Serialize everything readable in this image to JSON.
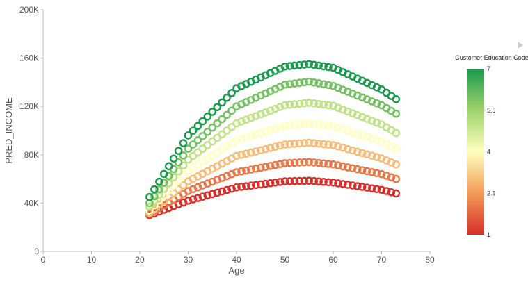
{
  "chart_data": {
    "type": "scatter",
    "xlabel": "Age",
    "ylabel": "PRED_INCOME",
    "xlim": [
      0,
      80
    ],
    "ylim": [
      0,
      200000
    ],
    "x_ticks": [
      0,
      10,
      20,
      30,
      40,
      50,
      60,
      70,
      80
    ],
    "x_tick_labels": [
      "0",
      "10",
      "20",
      "30",
      "40",
      "50",
      "60",
      "70",
      "80"
    ],
    "y_ticks": [
      0,
      40000,
      80000,
      120000,
      160000,
      200000
    ],
    "y_tick_labels": [
      "0",
      "40K",
      "80K",
      "120K",
      "160K",
      "200K"
    ],
    "grid": false,
    "marker": "open-circle",
    "legend": {
      "title": "Customer Education Code",
      "placement": "right",
      "type": "color-gradient",
      "min": 1,
      "max": 7,
      "ticks": [
        1,
        2.5,
        4,
        5.5,
        7
      ],
      "tick_labels": [
        "1",
        "2.5",
        "4",
        "5.5",
        "7"
      ],
      "stops": [
        {
          "value": 1,
          "color": "#d7302a"
        },
        {
          "value": 2.5,
          "color": "#f29a55"
        },
        {
          "value": 4,
          "color": "#ffffbf"
        },
        {
          "value": 5.5,
          "color": "#9fd46a"
        },
        {
          "value": 7,
          "color": "#1a9a4d"
        }
      ]
    },
    "series": [
      {
        "education_code": 1,
        "x_start": 22,
        "x_end": 73,
        "x_step": 1,
        "anchors": [
          [
            22,
            30000
          ],
          [
            30,
            42000
          ],
          [
            40,
            53000
          ],
          [
            50,
            58000
          ],
          [
            55,
            58500
          ],
          [
            60,
            57000
          ],
          [
            70,
            51000
          ],
          [
            73,
            48000
          ]
        ]
      },
      {
        "education_code": 2,
        "x_start": 22,
        "x_end": 73,
        "x_step": 1,
        "anchors": [
          [
            22,
            31000
          ],
          [
            30,
            50000
          ],
          [
            40,
            65500
          ],
          [
            50,
            73000
          ],
          [
            55,
            74000
          ],
          [
            60,
            72000
          ],
          [
            70,
            64000
          ],
          [
            73,
            60000
          ]
        ]
      },
      {
        "education_code": 3,
        "x_start": 22,
        "x_end": 73,
        "x_step": 1,
        "anchors": [
          [
            22,
            32000
          ],
          [
            30,
            58000
          ],
          [
            40,
            79000
          ],
          [
            50,
            88500
          ],
          [
            55,
            90000
          ],
          [
            60,
            88000
          ],
          [
            70,
            77000
          ],
          [
            73,
            72000
          ]
        ]
      },
      {
        "education_code": 4,
        "x_start": 22,
        "x_end": 73,
        "x_step": 1,
        "anchors": [
          [
            22,
            34000
          ],
          [
            30,
            67000
          ],
          [
            40,
            92000
          ],
          [
            50,
            104000
          ],
          [
            55,
            106000
          ],
          [
            60,
            103500
          ],
          [
            70,
            91000
          ],
          [
            73,
            85000
          ]
        ]
      },
      {
        "education_code": 5,
        "x_start": 22,
        "x_end": 73,
        "x_step": 1,
        "anchors": [
          [
            22,
            37000
          ],
          [
            30,
            76000
          ],
          [
            40,
            106000
          ],
          [
            50,
            121000
          ],
          [
            55,
            123000
          ],
          [
            60,
            120500
          ],
          [
            70,
            105000
          ],
          [
            73,
            98000
          ]
        ]
      },
      {
        "education_code": 6,
        "x_start": 22,
        "x_end": 73,
        "x_step": 1,
        "anchors": [
          [
            22,
            40000
          ],
          [
            30,
            85000
          ],
          [
            40,
            120000
          ],
          [
            50,
            138000
          ],
          [
            55,
            140500
          ],
          [
            60,
            137000
          ],
          [
            70,
            121000
          ],
          [
            73,
            114000
          ]
        ]
      },
      {
        "education_code": 7,
        "x_start": 22,
        "x_end": 73,
        "x_step": 1,
        "anchors": [
          [
            22,
            45000
          ],
          [
            30,
            96000
          ],
          [
            40,
            135000
          ],
          [
            50,
            153000
          ],
          [
            55,
            155000
          ],
          [
            60,
            152000
          ],
          [
            70,
            134000
          ],
          [
            73,
            126000
          ]
        ]
      }
    ]
  }
}
